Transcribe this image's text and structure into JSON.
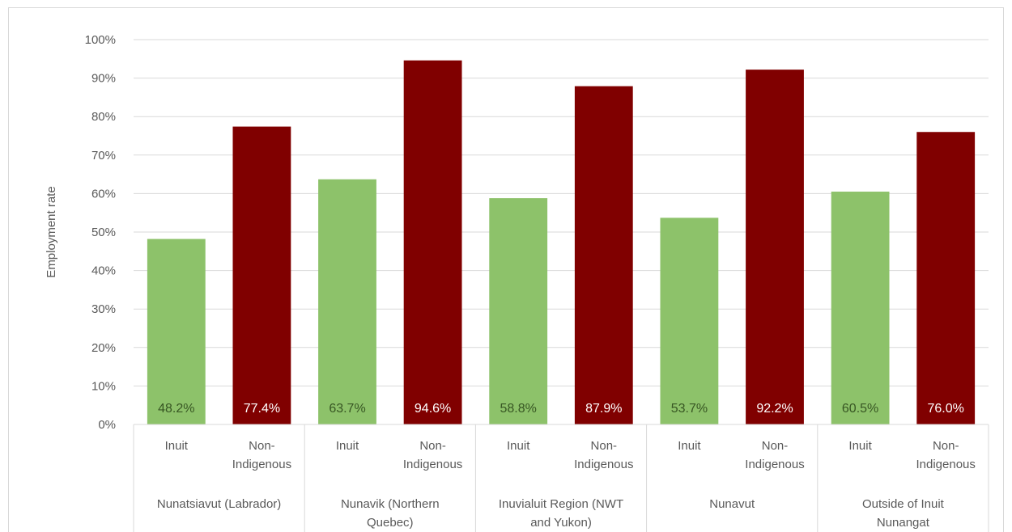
{
  "chart_data": {
    "type": "bar",
    "ylabel": "Employment rate",
    "ylim": [
      0,
      100
    ],
    "y_ticks": [
      "0%",
      "10%",
      "20%",
      "30%",
      "40%",
      "50%",
      "60%",
      "70%",
      "80%",
      "90%",
      "100%"
    ],
    "gridlines": true,
    "groups": [
      {
        "name": [
          "Nunatsiavut (Labrador)"
        ],
        "bars": [
          {
            "label": [
              "Inuit"
            ],
            "value": 48.2,
            "data_label": "48.2%",
            "color": "#8dc26a"
          },
          {
            "label": [
              "Non-",
              "Indigenous"
            ],
            "value": 77.4,
            "data_label": "77.4%",
            "color": "#800000"
          }
        ]
      },
      {
        "name": [
          "Nunavik (Northern",
          "Quebec)"
        ],
        "bars": [
          {
            "label": [
              "Inuit"
            ],
            "value": 63.7,
            "data_label": "63.7%",
            "color": "#8dc26a"
          },
          {
            "label": [
              "Non-",
              "Indigenous"
            ],
            "value": 94.6,
            "data_label": "94.6%",
            "color": "#800000"
          }
        ]
      },
      {
        "name": [
          "Inuvialuit Region (NWT",
          "and Yukon)"
        ],
        "bars": [
          {
            "label": [
              "Inuit"
            ],
            "value": 58.8,
            "data_label": "58.8%",
            "color": "#8dc26a"
          },
          {
            "label": [
              "Non-",
              "Indigenous"
            ],
            "value": 87.9,
            "data_label": "87.9%",
            "color": "#800000"
          }
        ]
      },
      {
        "name": [
          "Nunavut"
        ],
        "bars": [
          {
            "label": [
              "Inuit"
            ],
            "value": 53.7,
            "data_label": "53.7%",
            "color": "#8dc26a"
          },
          {
            "label": [
              "Non-",
              "Indigenous"
            ],
            "value": 92.2,
            "data_label": "92.2%",
            "color": "#800000"
          }
        ]
      },
      {
        "name": [
          "Outside of Inuit",
          "Nunangat"
        ],
        "bars": [
          {
            "label": [
              "Inuit"
            ],
            "value": 60.5,
            "data_label": "60.5%",
            "color": "#8dc26a"
          },
          {
            "label": [
              "Non-",
              "Indigenous"
            ],
            "value": 76.0,
            "data_label": "76.0%",
            "color": "#800000"
          }
        ]
      }
    ],
    "colors": {
      "inuit": "#8dc26a",
      "non_indigenous": "#800000",
      "inuit_label_text": "#375623",
      "non_indigenous_label_text": "#ffffff",
      "grid": "#d9d9d9",
      "axis_text": "#595959"
    }
  }
}
